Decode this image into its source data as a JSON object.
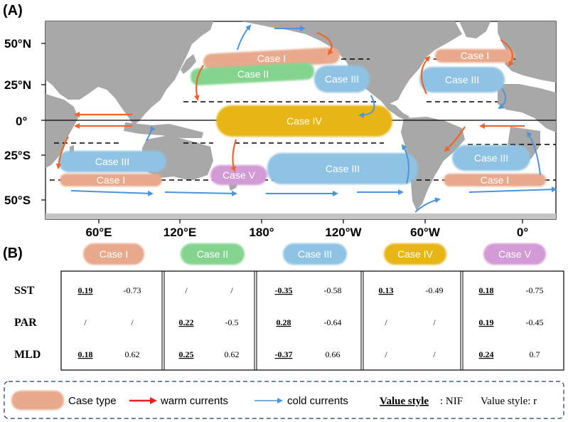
{
  "panel_a": {
    "label": "(A)",
    "lat_labels": [
      "50°N",
      "25°N",
      "0°",
      "25°S",
      "50°S"
    ],
    "lon_labels": [
      "60°E",
      "120°E",
      "180°",
      "120°W",
      "60°W",
      "0°"
    ],
    "boxes": [
      {
        "name": "box-case1-npac",
        "label": "Case I",
        "case": "I"
      },
      {
        "name": "box-case2-npac",
        "label": "Case II",
        "case": "II"
      },
      {
        "name": "box-case3-npac",
        "label": "Case III",
        "case": "III"
      },
      {
        "name": "box-case1-natl",
        "label": "Case I",
        "case": "I"
      },
      {
        "name": "box-case3-natl",
        "label": "Case III",
        "case": "III"
      },
      {
        "name": "box-case4-eq",
        "label": "Case IV",
        "case": "IV"
      },
      {
        "name": "box-case3-sind",
        "label": "Case III",
        "case": "III"
      },
      {
        "name": "box-case1-sind",
        "label": "Case I",
        "case": "I"
      },
      {
        "name": "box-case5-tasman",
        "label": "Case V",
        "case": "V"
      },
      {
        "name": "box-case3-spac",
        "label": "Case III",
        "case": "III"
      },
      {
        "name": "box-case3-satl",
        "label": "Case III",
        "case": "III"
      },
      {
        "name": "box-case1-satl",
        "label": "Case I",
        "case": "I"
      }
    ]
  },
  "panel_b": {
    "label": "(B)",
    "case_headers": [
      {
        "label": "Case I",
        "case": "I"
      },
      {
        "label": "Case II",
        "case": "II"
      },
      {
        "label": "Case III",
        "case": "III"
      },
      {
        "label": "Case IV",
        "case": "IV"
      },
      {
        "label": "Case V",
        "case": "V"
      }
    ],
    "rows": [
      {
        "label": "SST",
        "cells": [
          [
            "0.19",
            "-0.73"
          ],
          [
            "/",
            "/"
          ],
          [
            "-0.35",
            "-0.58"
          ],
          [
            "0.13",
            "-0.49"
          ],
          [
            "0.18",
            "-0.75"
          ]
        ]
      },
      {
        "label": "PAR",
        "cells": [
          [
            "/",
            "/"
          ],
          [
            "0.22",
            "-0.5"
          ],
          [
            "0.28",
            "-0.64"
          ],
          [
            "/",
            "/"
          ],
          [
            "0.19",
            "-0.45"
          ]
        ]
      },
      {
        "label": "MLD",
        "cells": [
          [
            "0.18",
            "0.62"
          ],
          [
            "0.25",
            "0.62"
          ],
          [
            "-0.37",
            "0.66"
          ],
          [
            "/",
            "/"
          ],
          [
            "0.24",
            "0.7"
          ]
        ]
      }
    ]
  },
  "legend": {
    "case_type": "Case type",
    "warm": "warm currents",
    "cold": "cold  currents",
    "nif_label": "Value style",
    "nif_value": ": NIF",
    "r_label": "Value style: r"
  },
  "colors": {
    "I": "#e8a98c",
    "II": "#84d48f",
    "III": "#8fc3e3",
    "IV": "#e8b516",
    "V": "#d39bd6",
    "ocean": "#ffffff",
    "land": "#a8a8a8",
    "warm": "#f0642a",
    "cold": "#4d95d8",
    "legend_warm": "#ee1c1c"
  }
}
